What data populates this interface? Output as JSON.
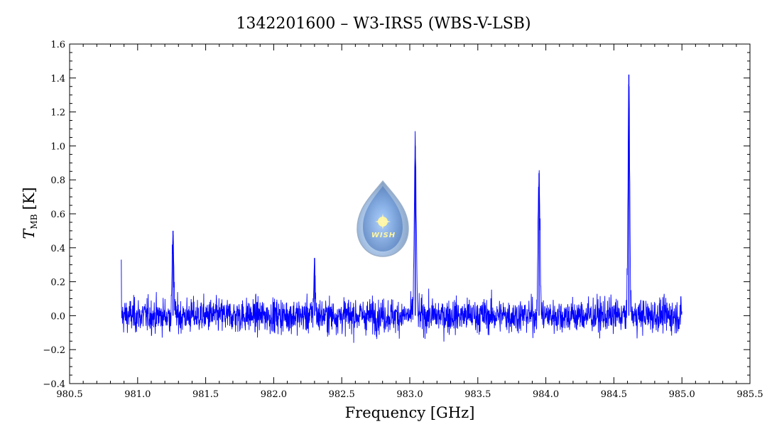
{
  "chart_data": {
    "type": "line",
    "title": "1342201600 – W3-IRS5 (WBS-V-LSB)",
    "xlabel": "Frequency [GHz]",
    "ylabel_main": "T",
    "ylabel_sub": "MB",
    "ylabel_unit": "[K]",
    "xlim": [
      980.5,
      985.5
    ],
    "ylim": [
      -0.4,
      1.6
    ],
    "x_ticks": [
      "980.5",
      "981.0",
      "981.5",
      "982.0",
      "982.5",
      "983.0",
      "983.5",
      "984.0",
      "984.5",
      "985.0",
      "985.5"
    ],
    "y_ticks": [
      "−0.4",
      "−0.2",
      "0.0",
      "0.2",
      "0.4",
      "0.6",
      "0.8",
      "1.0",
      "1.2",
      "1.4",
      "1.6"
    ],
    "series": [
      {
        "color": "#0000ff",
        "x_range": [
          980.88,
          985.0
        ],
        "noise_rms_K": 0.07,
        "peaks": [
          {
            "x": 981.26,
            "y": 0.5
          },
          {
            "x": 982.3,
            "y": 0.34
          },
          {
            "x": 983.04,
            "y": 1.0
          },
          {
            "x": 983.95,
            "y": 0.84
          },
          {
            "x": 984.61,
            "y": 1.42
          }
        ]
      }
    ],
    "grid": false,
    "legend": "none"
  },
  "logo": {
    "text": "WISH"
  }
}
